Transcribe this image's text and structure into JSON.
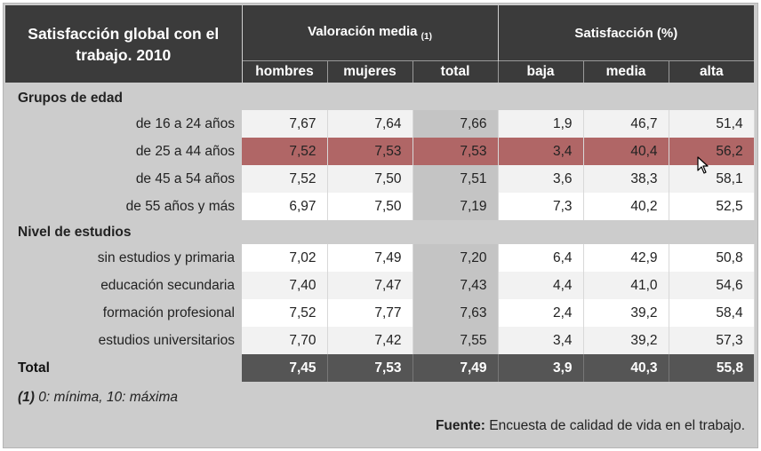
{
  "header": {
    "title": "Satisfacción global con el trabajo. 2010",
    "group_valoracion": "Valoración media",
    "group_valoracion_note": "(1)",
    "group_satisfaccion": "Satisfacción (%)",
    "columns": [
      "hombres",
      "mujeres",
      "total",
      "baja",
      "media",
      "alta"
    ]
  },
  "sections": [
    {
      "name": "Grupos de edad",
      "rows": [
        {
          "label": "de 16 a 24 años",
          "values": [
            "7,67",
            "7,64",
            "7,66",
            "1,9",
            "46,7",
            "51,4"
          ]
        },
        {
          "label": "de 25 a 44 años",
          "values": [
            "7,52",
            "7,53",
            "7,53",
            "3,4",
            "40,4",
            "56,2"
          ]
        },
        {
          "label": "de 45 a 54 años",
          "values": [
            "7,52",
            "7,50",
            "7,51",
            "3,6",
            "38,3",
            "58,1"
          ]
        },
        {
          "label": "de 55 años y más",
          "values": [
            "6,97",
            "7,50",
            "7,19",
            "7,3",
            "40,2",
            "52,5"
          ]
        }
      ]
    },
    {
      "name": "Nivel de estudios",
      "rows": [
        {
          "label": "sin estudios y primaria",
          "values": [
            "7,02",
            "7,49",
            "7,20",
            "6,4",
            "42,9",
            "50,8"
          ]
        },
        {
          "label": "educación secundaria",
          "values": [
            "7,40",
            "7,47",
            "7,43",
            "4,4",
            "41,0",
            "54,6"
          ]
        },
        {
          "label": "formación profesional",
          "values": [
            "7,52",
            "7,77",
            "7,63",
            "2,4",
            "39,2",
            "58,4"
          ]
        },
        {
          "label": "estudios universitarios",
          "values": [
            "7,70",
            "7,42",
            "7,55",
            "3,4",
            "39,2",
            "57,3"
          ]
        }
      ]
    }
  ],
  "total": {
    "label": "Total",
    "values": [
      "7,45",
      "7,53",
      "7,49",
      "3,9",
      "40,3",
      "55,8"
    ]
  },
  "footnote": {
    "marker": "(1)",
    "text": " 0: mínima, 10: máxima"
  },
  "source": {
    "label": "Fuente:",
    "text": " Encuesta de calidad de vida en el trabajo."
  },
  "colors": {
    "header_bg": "#3b3b3b",
    "highlight_row": "#b06666",
    "total_bg": "#555555",
    "panel_bg": "#cccccc"
  }
}
